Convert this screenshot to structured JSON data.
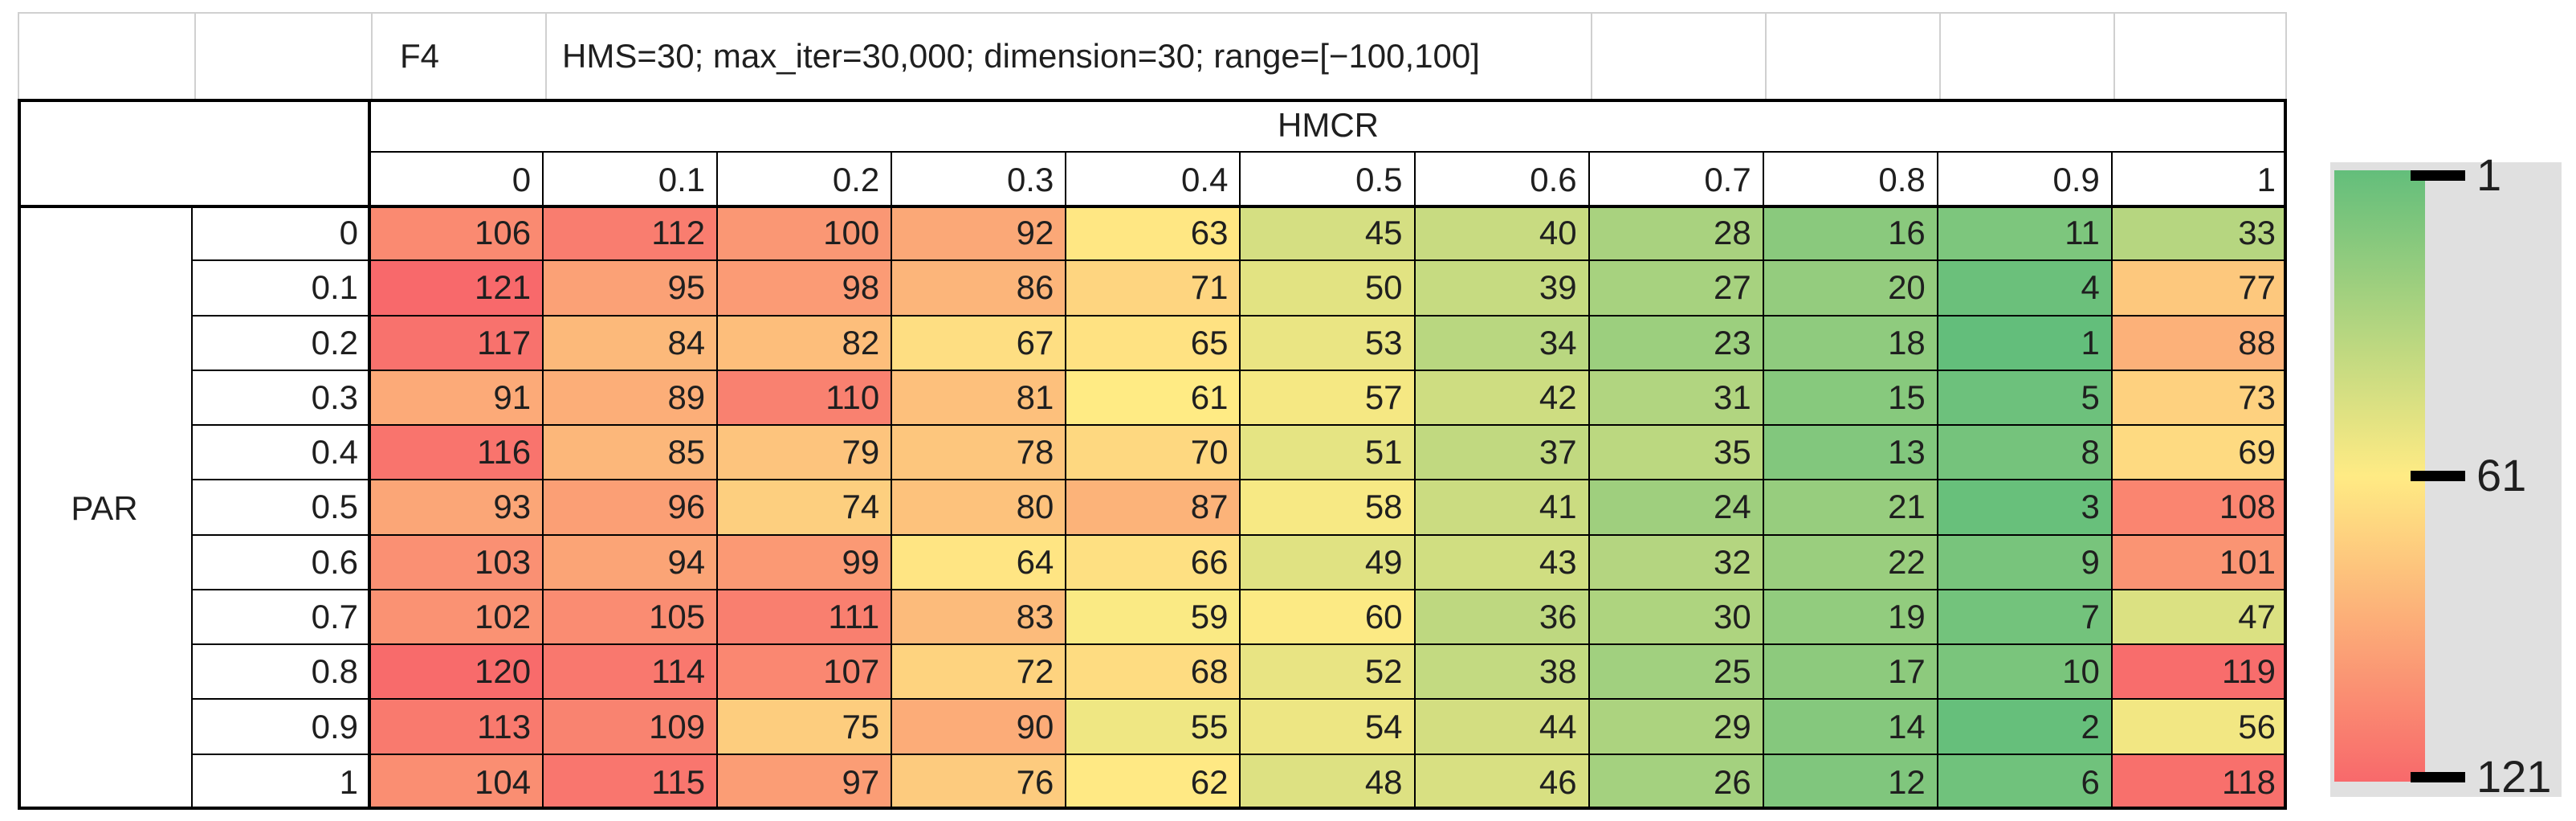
{
  "title_row": {
    "function_label": "F4",
    "settings": "HMS=30; max_iter=30,000; dimension=30; range=[−100,100]"
  },
  "chart_data": {
    "type": "heatmap",
    "title": "F4",
    "subtitle": "HMS=30; max_iter=30,000; dimension=30; range=[−100,100]",
    "xlabel": "HMCR",
    "ylabel": "PAR",
    "x_ticks": [
      "0",
      "0.1",
      "0.2",
      "0.3",
      "0.4",
      "0.5",
      "0.6",
      "0.7",
      "0.8",
      "0.9",
      "1"
    ],
    "y_ticks": [
      "0",
      "0.1",
      "0.2",
      "0.3",
      "0.4",
      "0.5",
      "0.6",
      "0.7",
      "0.8",
      "0.9",
      "1"
    ],
    "values": [
      [
        106,
        112,
        100,
        92,
        63,
        45,
        40,
        28,
        16,
        11,
        33
      ],
      [
        121,
        95,
        98,
        86,
        71,
        50,
        39,
        27,
        20,
        4,
        77
      ],
      [
        117,
        84,
        82,
        67,
        65,
        53,
        34,
        23,
        18,
        1,
        88
      ],
      [
        91,
        89,
        110,
        81,
        61,
        57,
        42,
        31,
        15,
        5,
        73
      ],
      [
        116,
        85,
        79,
        78,
        70,
        51,
        37,
        35,
        13,
        8,
        69
      ],
      [
        93,
        96,
        74,
        80,
        87,
        58,
        41,
        24,
        21,
        3,
        108
      ],
      [
        103,
        94,
        99,
        64,
        66,
        49,
        43,
        32,
        22,
        9,
        101
      ],
      [
        102,
        105,
        111,
        83,
        59,
        60,
        36,
        30,
        19,
        7,
        47
      ],
      [
        120,
        114,
        107,
        72,
        68,
        52,
        38,
        25,
        17,
        10,
        119
      ],
      [
        113,
        109,
        75,
        90,
        55,
        54,
        44,
        29,
        14,
        2,
        56
      ],
      [
        104,
        115,
        97,
        76,
        62,
        48,
        46,
        26,
        12,
        6,
        118
      ]
    ],
    "value_range": [
      1,
      121
    ],
    "color_scale": {
      "min_value": 1,
      "min_color": "#63BE7B",
      "mid_value": 61,
      "mid_color": "#FFEB84",
      "max_value": 121,
      "max_color": "#F8696B"
    },
    "legend": {
      "position": "right",
      "tick_labels": [
        "1",
        "61",
        "121"
      ]
    }
  }
}
